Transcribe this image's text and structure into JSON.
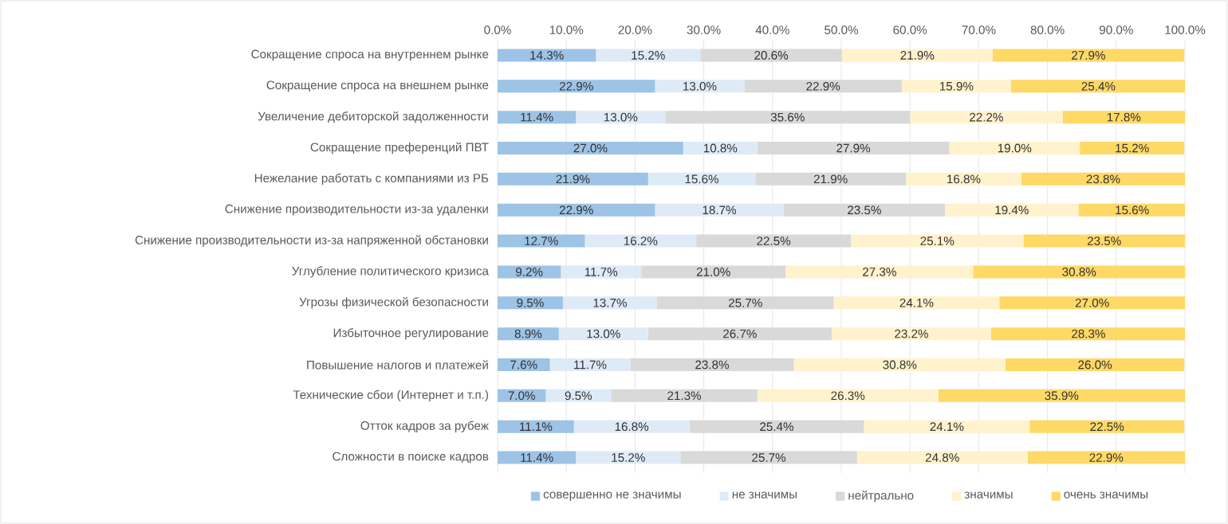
{
  "chart_data": {
    "type": "bar",
    "orientation": "horizontal",
    "stacked": true,
    "grid": "x",
    "legend": "bottom",
    "categories": [
      "Сокращение спроса на внутреннем рынке",
      "Сокращение спроса на внешнем рынке",
      "Увеличение дебиторской задолженности",
      "Сокращение преференций ПВТ",
      "Нежелание работать с компаниями из РБ",
      "Снижение производительности из-за удаленки",
      "Снижение производительности из-за напряженной обстановки",
      "Углубление политического кризиса",
      "Угрозы физической безопасности",
      "Избыточное регулирование",
      "Повышение налогов и платежей",
      "Технические сбои (Интернет и т.п.)",
      "Отток кадров за рубеж",
      "Сложности в поиске кадров"
    ],
    "xlim": [
      0,
      100
    ],
    "xticks": [
      {
        "value": 0,
        "label": "0.0%"
      },
      {
        "value": 10,
        "label": "10.0%"
      },
      {
        "value": 20,
        "label": "20.0%"
      },
      {
        "value": 30,
        "label": "30.0%"
      },
      {
        "value": 40,
        "label": "40.0%"
      },
      {
        "value": 50,
        "label": "50.0%"
      },
      {
        "value": 60,
        "label": "60.0%"
      },
      {
        "value": 70,
        "label": "70.0%"
      },
      {
        "value": 80,
        "label": "80.0%"
      },
      {
        "value": 90,
        "label": "90.0%"
      },
      {
        "value": 100,
        "label": "100.0%"
      }
    ],
    "series": [
      {
        "name": "совершенно не значимы",
        "color": "#9dc3e6",
        "values": [
          14.3,
          22.9,
          11.4,
          27.0,
          21.9,
          22.9,
          12.7,
          9.2,
          9.5,
          8.9,
          7.6,
          7.0,
          11.1,
          11.4
        ],
        "value_labels": [
          "14.3%",
          "22.9%",
          "11.4%",
          "27.0%",
          "21.9%",
          "22.9%",
          "12.7%",
          "9.2%",
          "9.5%",
          "8.9%",
          "7.6%",
          "7.0%",
          "11.1%",
          "11.4%"
        ]
      },
      {
        "name": "не значимы",
        "color": "#deebf7",
        "values": [
          15.2,
          13.0,
          13.0,
          10.8,
          15.6,
          18.7,
          16.2,
          11.7,
          13.7,
          13.0,
          11.7,
          9.5,
          16.8,
          15.2
        ],
        "value_labels": [
          "15.2%",
          "13.0%",
          "13.0%",
          "10.8%",
          "15.6%",
          "18.7%",
          "16.2%",
          "11.7%",
          "13.7%",
          "13.0%",
          "11.7%",
          "9.5%",
          "16.8%",
          "15.2%"
        ]
      },
      {
        "name": "нейтрально",
        "color": "#d9d9d9",
        "values": [
          20.6,
          22.9,
          35.6,
          27.9,
          21.9,
          23.5,
          22.5,
          21.0,
          25.7,
          26.7,
          23.8,
          21.3,
          25.4,
          25.7
        ],
        "value_labels": [
          "20.6%",
          "22.9%",
          "35.6%",
          "27.9%",
          "21.9%",
          "23.5%",
          "22.5%",
          "21.0%",
          "25.7%",
          "26.7%",
          "23.8%",
          "21.3%",
          "25.4%",
          "25.7%"
        ]
      },
      {
        "name": "значимы",
        "color": "#fff2cc",
        "values": [
          21.9,
          15.9,
          22.2,
          19.0,
          16.8,
          19.4,
          25.1,
          27.3,
          24.1,
          23.2,
          30.8,
          26.3,
          24.1,
          24.8
        ],
        "value_labels": [
          "21.9%",
          "15.9%",
          "22.2%",
          "19.0%",
          "16.8%",
          "19.4%",
          "25.1%",
          "27.3%",
          "24.1%",
          "23.2%",
          "30.8%",
          "26.3%",
          "24.1%",
          "24.8%"
        ]
      },
      {
        "name": "очень значимы",
        "color": "#ffd966",
        "values": [
          27.9,
          25.4,
          17.8,
          15.2,
          23.8,
          15.6,
          23.5,
          30.8,
          27.0,
          28.3,
          26.0,
          35.9,
          22.5,
          22.9
        ],
        "value_labels": [
          "27.9%",
          "25.4%",
          "17.8%",
          "15.2%",
          "23.8%",
          "15.6%",
          "23.5%",
          "30.8%",
          "27.0%",
          "28.3%",
          "26.0%",
          "35.9%",
          "22.5%",
          "22.9%"
        ]
      }
    ]
  }
}
